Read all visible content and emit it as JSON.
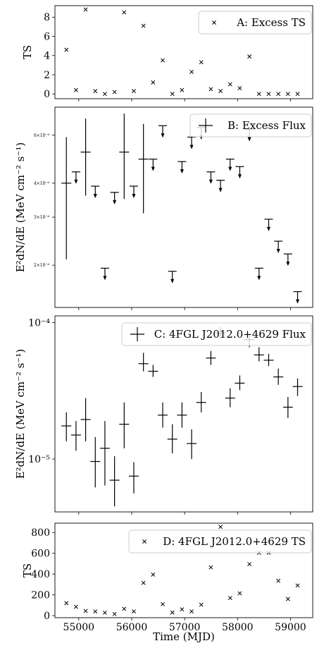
{
  "chart_data": [
    {
      "type": "scatter",
      "panel": "A",
      "ylabel": "TS",
      "legend": "A: Excess TS",
      "legend_position": "top-right",
      "marker": "x",
      "ylim": [
        -0.5,
        9.2
      ],
      "yticks": [
        0,
        2,
        4,
        6,
        8
      ],
      "y_scale": "linear",
      "x": [
        54766,
        54948,
        55130,
        55312,
        55494,
        55676,
        55858,
        56040,
        56222,
        56404,
        56586,
        56768,
        56950,
        57132,
        57314,
        57496,
        57678,
        57860,
        58042,
        58224,
        58406,
        58588,
        58770,
        58952,
        59134
      ],
      "y": [
        4.6,
        0.4,
        8.8,
        0.3,
        0.0,
        0.2,
        8.5,
        0.3,
        7.1,
        1.2,
        3.5,
        0.0,
        0.4,
        2.3,
        3.3,
        0.5,
        0.3,
        1.0,
        0.6,
        3.9,
        0.0,
        0.0,
        0.0,
        0.0,
        0.0
      ]
    },
    {
      "type": "errorbar",
      "panel": "B",
      "ylabel": "E²dN/dE (MeV cm⁻² s⁻¹)",
      "legend": "B: Excess Flux",
      "legend_position": "top-right",
      "y_scale": "log",
      "ylim": [
        1.4e-06,
        7.6e-06
      ],
      "yticks": [
        2e-06,
        3e-06,
        4e-06,
        6e-06
      ],
      "ytick_labels": [
        "2×10⁻⁶",
        "3×10⁻⁶",
        "4×10⁻⁶",
        "6×10⁻⁶"
      ],
      "points": [
        {
          "x": 54766,
          "y": 4e-06,
          "ylo": 2.1e-06,
          "yhi": 5.9e-06,
          "upper_limit": false
        },
        {
          "x": 54948,
          "y": 4.4e-06,
          "upper_limit": true
        },
        {
          "x": 55130,
          "y": 5.2e-06,
          "ylo": 3.6e-06,
          "yhi": 6.9e-06,
          "upper_limit": false
        },
        {
          "x": 55312,
          "y": 3.9e-06,
          "upper_limit": true
        },
        {
          "x": 55494,
          "y": 1.95e-06,
          "upper_limit": true
        },
        {
          "x": 55676,
          "y": 3.7e-06,
          "upper_limit": true
        },
        {
          "x": 55858,
          "y": 5.2e-06,
          "ylo": 3.5e-06,
          "yhi": 7.2e-06,
          "upper_limit": false
        },
        {
          "x": 56040,
          "y": 3.9e-06,
          "upper_limit": true
        },
        {
          "x": 56222,
          "y": 4.9e-06,
          "ylo": 3.1e-06,
          "yhi": 6.6e-06,
          "upper_limit": false
        },
        {
          "x": 56404,
          "y": 4.9e-06,
          "upper_limit": true
        },
        {
          "x": 56586,
          "y": 6.5e-06,
          "upper_limit": true
        },
        {
          "x": 56768,
          "y": 1.9e-06,
          "upper_limit": true
        },
        {
          "x": 56950,
          "y": 4.8e-06,
          "upper_limit": true
        },
        {
          "x": 57132,
          "y": 5.9e-06,
          "upper_limit": true
        },
        {
          "x": 57314,
          "y": 6.4e-06,
          "upper_limit": true
        },
        {
          "x": 57496,
          "y": 4.4e-06,
          "upper_limit": true
        },
        {
          "x": 57678,
          "y": 4.1e-06,
          "upper_limit": true
        },
        {
          "x": 57860,
          "y": 4.9e-06,
          "upper_limit": true
        },
        {
          "x": 58042,
          "y": 4.6e-06,
          "upper_limit": true
        },
        {
          "x": 58224,
          "y": 6.3e-06,
          "upper_limit": true
        },
        {
          "x": 58406,
          "y": 1.95e-06,
          "upper_limit": true
        },
        {
          "x": 58588,
          "y": 2.95e-06,
          "upper_limit": true
        },
        {
          "x": 58770,
          "y": 2.45e-06,
          "upper_limit": true
        },
        {
          "x": 58952,
          "y": 2.2e-06,
          "upper_limit": true
        },
        {
          "x": 59134,
          "y": 1.6e-06,
          "upper_limit": true
        }
      ]
    },
    {
      "type": "errorbar",
      "panel": "C",
      "ylabel": "E²dN/dE (MeV cm⁻² s⁻¹)",
      "legend": "C: 4FGL J2012.0+4629 Flux",
      "legend_position": "top-right",
      "y_scale": "log",
      "ylim": [
        4.1e-06,
        0.000112
      ],
      "yticks": [
        1e-05,
        0.0001
      ],
      "ytick_labels": [
        "10⁻⁵",
        "10⁻⁴"
      ],
      "points": [
        {
          "x": 54766,
          "y": 1.75e-05,
          "ylo": 1.35e-05,
          "yhi": 2.2e-05
        },
        {
          "x": 54948,
          "y": 1.5e-05,
          "ylo": 1.15e-05,
          "yhi": 1.9e-05
        },
        {
          "x": 55130,
          "y": 1.95e-05,
          "ylo": 1.35e-05,
          "yhi": 2.8e-05
        },
        {
          "x": 55312,
          "y": 9.6e-06,
          "ylo": 6.2e-06,
          "yhi": 1.45e-05
        },
        {
          "x": 55494,
          "y": 1.2e-05,
          "ylo": 6.4e-06,
          "yhi": 1.9e-05
        },
        {
          "x": 55676,
          "y": 7e-06,
          "ylo": 4.5e-06,
          "yhi": 1.05e-05
        },
        {
          "x": 55858,
          "y": 1.8e-05,
          "ylo": 1.2e-05,
          "yhi": 2.6e-05
        },
        {
          "x": 56040,
          "y": 7.5e-06,
          "ylo": 5.6e-06,
          "yhi": 9.5e-06
        },
        {
          "x": 56222,
          "y": 5e-05,
          "ylo": 4.4e-05,
          "yhi": 6e-05
        },
        {
          "x": 56404,
          "y": 4.4e-05,
          "ylo": 4e-05,
          "yhi": 4.9e-05
        },
        {
          "x": 56586,
          "y": 2.1e-05,
          "ylo": 1.7e-05,
          "yhi": 2.6e-05
        },
        {
          "x": 56768,
          "y": 1.4e-05,
          "ylo": 1.1e-05,
          "yhi": 1.8e-05
        },
        {
          "x": 56950,
          "y": 2.1e-05,
          "ylo": 1.7e-05,
          "yhi": 2.6e-05
        },
        {
          "x": 57132,
          "y": 1.3e-05,
          "ylo": 1e-05,
          "yhi": 1.65e-05
        },
        {
          "x": 57314,
          "y": 2.6e-05,
          "ylo": 2.2e-05,
          "yhi": 3.1e-05
        },
        {
          "x": 57496,
          "y": 5.5e-05,
          "ylo": 4.9e-05,
          "yhi": 6.2e-05
        },
        {
          "x": 57678,
          "y": 8.4e-05,
          "ylo": 7.6e-05,
          "yhi": 9.3e-05
        },
        {
          "x": 57860,
          "y": 2.8e-05,
          "ylo": 2.4e-05,
          "yhi": 3.3e-05
        },
        {
          "x": 58042,
          "y": 3.6e-05,
          "ylo": 3.2e-05,
          "yhi": 4.1e-05
        },
        {
          "x": 58224,
          "y": 7.5e-05,
          "ylo": 6.6e-05,
          "yhi": 8.3e-05
        },
        {
          "x": 58406,
          "y": 5.8e-05,
          "ylo": 5.2e-05,
          "yhi": 6.6e-05
        },
        {
          "x": 58588,
          "y": 5.3e-05,
          "ylo": 4.8e-05,
          "yhi": 5.9e-05
        },
        {
          "x": 58770,
          "y": 4e-05,
          "ylo": 3.5e-05,
          "yhi": 4.6e-05
        },
        {
          "x": 58952,
          "y": 2.4e-05,
          "ylo": 2e-05,
          "yhi": 2.85e-05
        },
        {
          "x": 59134,
          "y": 3.4e-05,
          "ylo": 2.9e-05,
          "yhi": 3.9e-05
        }
      ]
    },
    {
      "type": "scatter",
      "panel": "D",
      "ylabel": "TS",
      "xlabel": "Time (MJD)",
      "legend": "D: 4FGL J2012.0+4629 TS",
      "legend_position": "top-right",
      "marker": "x",
      "y_scale": "linear",
      "ylim": [
        -20,
        890
      ],
      "yticks": [
        0,
        200,
        400,
        600,
        800
      ],
      "xlim": [
        54550,
        59420
      ],
      "xticks": [
        55000,
        56000,
        57000,
        58000,
        59000
      ],
      "x": [
        54766,
        54948,
        55130,
        55312,
        55494,
        55676,
        55858,
        56040,
        56222,
        56404,
        56586,
        56768,
        56950,
        57132,
        57314,
        57496,
        57678,
        57860,
        58042,
        58224,
        58406,
        58588,
        58770,
        58952,
        59134
      ],
      "y": [
        120,
        85,
        45,
        40,
        28,
        15,
        65,
        40,
        315,
        395,
        110,
        30,
        60,
        40,
        105,
        465,
        855,
        170,
        215,
        495,
        605,
        605,
        335,
        160,
        290
      ]
    }
  ]
}
